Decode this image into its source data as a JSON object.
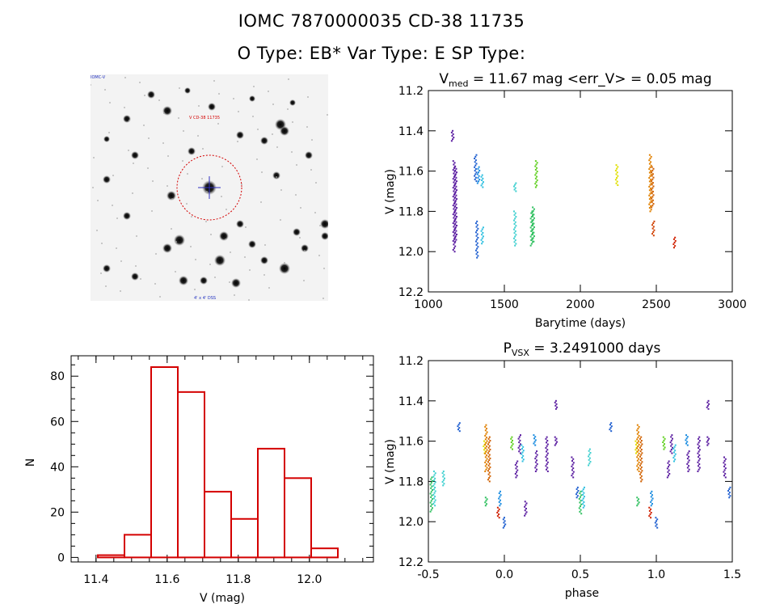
{
  "header": {
    "line1": "IOMC 7870000035    CD-38 11735",
    "line2": "O Type: EB*  Var Type: E  SP Type:"
  },
  "stamp": {
    "caption_top_left": "IOMC-V",
    "caption_target": "V CD-38 11735",
    "caption_bottom": "4' x 4' DSS",
    "marker_color": "#d40000"
  },
  "chart_data": [
    {
      "id": "lightcurve",
      "type": "scatter",
      "title": "V_med = 11.67 mag <err_V> = 0.05 mag",
      "title_parts": {
        "prefix": "V",
        "sub": "med",
        "rest": " = 11.67 mag <err_V> = 0.05 mag"
      },
      "xlabel": "Barytime (days)",
      "ylabel": "V (mag)",
      "xlim": [
        1000,
        3000
      ],
      "ylim": [
        12.2,
        11.2
      ],
      "xticks": [
        "1000",
        "1500",
        "2000",
        "2500",
        "3000"
      ],
      "yticks": [
        "11.2",
        "11.4",
        "11.6",
        "11.8",
        "12.0",
        "12.2"
      ],
      "segments": [
        {
          "x": 1160,
          "ymin": 11.4,
          "ymax": 11.45,
          "color": "#5a1ca0"
        },
        {
          "x": 1170,
          "ymin": 11.55,
          "ymax": 12.0,
          "color": "#5a1ca0"
        },
        {
          "x": 1180,
          "ymin": 11.58,
          "ymax": 11.95,
          "color": "#5a1ca0"
        },
        {
          "x": 1310,
          "ymin": 11.52,
          "ymax": 11.65,
          "color": "#1f5fd0"
        },
        {
          "x": 1320,
          "ymin": 11.85,
          "ymax": 12.03,
          "color": "#1f5fd0"
        },
        {
          "x": 1330,
          "ymin": 11.58,
          "ymax": 11.66,
          "color": "#1a8ce0"
        },
        {
          "x": 1355,
          "ymin": 11.62,
          "ymax": 11.68,
          "color": "#30c0e0"
        },
        {
          "x": 1355,
          "ymin": 11.88,
          "ymax": 11.96,
          "color": "#30c0e0"
        },
        {
          "x": 1570,
          "ymin": 11.66,
          "ymax": 11.7,
          "color": "#40d0d0"
        },
        {
          "x": 1570,
          "ymin": 11.8,
          "ymax": 11.97,
          "color": "#40d0d0"
        },
        {
          "x": 1680,
          "ymin": 11.8,
          "ymax": 11.97,
          "color": "#30c060"
        },
        {
          "x": 1690,
          "ymin": 11.78,
          "ymax": 11.95,
          "color": "#30c060"
        },
        {
          "x": 1710,
          "ymin": 11.55,
          "ymax": 11.68,
          "color": "#60d020"
        },
        {
          "x": 2240,
          "ymin": 11.57,
          "ymax": 11.67,
          "color": "#e0e000"
        },
        {
          "x": 2460,
          "ymin": 11.52,
          "ymax": 11.8,
          "color": "#e08000"
        },
        {
          "x": 2475,
          "ymin": 11.58,
          "ymax": 11.78,
          "color": "#d06000"
        },
        {
          "x": 2480,
          "ymin": 11.85,
          "ymax": 11.92,
          "color": "#d04000"
        },
        {
          "x": 2620,
          "ymin": 11.93,
          "ymax": 11.98,
          "color": "#d02000"
        }
      ]
    },
    {
      "id": "histogram",
      "type": "bar",
      "xlabel": "V (mag)",
      "ylabel": "N",
      "xlim": [
        11.33,
        12.18
      ],
      "ylim": [
        -2,
        89
      ],
      "xticks": [
        "11.4",
        "11.6",
        "11.8",
        "12.0"
      ],
      "yticks": [
        "0",
        "20",
        "40",
        "60",
        "80"
      ],
      "bin_width": 0.075,
      "bins": [
        {
          "left": 11.405,
          "count": 1
        },
        {
          "left": 11.48,
          "count": 10
        },
        {
          "left": 11.555,
          "count": 84
        },
        {
          "left": 11.63,
          "count": 73
        },
        {
          "left": 11.705,
          "count": 29
        },
        {
          "left": 11.78,
          "count": 17
        },
        {
          "left": 11.855,
          "count": 48
        },
        {
          "left": 11.93,
          "count": 35
        },
        {
          "left": 12.005,
          "count": 4
        }
      ],
      "bar_color": "#d40000"
    },
    {
      "id": "phased",
      "type": "scatter",
      "title": "P_VSX = 3.2491000 days",
      "title_parts": {
        "prefix": "P",
        "sub": "VSX",
        "rest": " = 3.2491000 days"
      },
      "xlabel": "phase",
      "ylabel": "V (mag)",
      "xlim": [
        -0.5,
        1.5
      ],
      "ylim": [
        12.2,
        11.2
      ],
      "xticks": [
        "-0.5",
        "0.0",
        "0.5",
        "1.0",
        "1.5"
      ],
      "yticks": [
        "11.2",
        "11.4",
        "11.6",
        "11.8",
        "12.0",
        "12.2"
      ],
      "segments": [
        {
          "x": -0.48,
          "ymin": 11.78,
          "ymax": 11.95,
          "color": "#30c060"
        },
        {
          "x": -0.46,
          "ymin": 11.75,
          "ymax": 11.92,
          "color": "#40d0d0"
        },
        {
          "x": -0.4,
          "ymin": 11.75,
          "ymax": 11.82,
          "color": "#40d0d0"
        },
        {
          "x": -0.3,
          "ymin": 11.51,
          "ymax": 11.55,
          "color": "#1f5fd0"
        },
        {
          "x": -0.13,
          "ymin": 11.6,
          "ymax": 11.66,
          "color": "#e0e000"
        },
        {
          "x": -0.12,
          "ymin": 11.52,
          "ymax": 11.75,
          "color": "#e08000"
        },
        {
          "x": -0.1,
          "ymin": 11.58,
          "ymax": 11.8,
          "color": "#d06000"
        },
        {
          "x": -0.12,
          "ymin": 11.88,
          "ymax": 11.92,
          "color": "#30c060"
        },
        {
          "x": -0.04,
          "ymin": 11.93,
          "ymax": 11.98,
          "color": "#d02000"
        },
        {
          "x": -0.03,
          "ymin": 11.85,
          "ymax": 11.92,
          "color": "#1a8ce0"
        },
        {
          "x": 0.0,
          "ymin": 11.98,
          "ymax": 12.03,
          "color": "#1f5fd0"
        },
        {
          "x": 0.05,
          "ymin": 11.58,
          "ymax": 11.64,
          "color": "#60d020"
        },
        {
          "x": 0.08,
          "ymin": 11.7,
          "ymax": 11.78,
          "color": "#5a1ca0"
        },
        {
          "x": 0.1,
          "ymin": 11.57,
          "ymax": 11.66,
          "color": "#5a1ca0"
        },
        {
          "x": 0.12,
          "ymin": 11.62,
          "ymax": 11.7,
          "color": "#30c0e0"
        },
        {
          "x": 0.14,
          "ymin": 11.9,
          "ymax": 11.97,
          "color": "#5a1ca0"
        },
        {
          "x": 0.2,
          "ymin": 11.57,
          "ymax": 11.62,
          "color": "#1a8ce0"
        },
        {
          "x": 0.21,
          "ymin": 11.65,
          "ymax": 11.75,
          "color": "#5a1ca0"
        },
        {
          "x": 0.28,
          "ymin": 11.58,
          "ymax": 11.75,
          "color": "#5a1ca0"
        },
        {
          "x": 0.34,
          "ymin": 11.4,
          "ymax": 11.44,
          "color": "#5a1ca0"
        },
        {
          "x": 0.34,
          "ymin": 11.58,
          "ymax": 11.62,
          "color": "#5a1ca0"
        },
        {
          "x": 0.45,
          "ymin": 11.68,
          "ymax": 11.78,
          "color": "#5a1ca0"
        },
        {
          "x": 0.48,
          "ymin": 11.83,
          "ymax": 11.88,
          "color": "#1f5fd0"
        },
        {
          "x": 0.5,
          "ymin": 11.85,
          "ymax": 11.96,
          "color": "#30c060"
        },
        {
          "x": 0.52,
          "ymin": 11.83,
          "ymax": 11.93,
          "color": "#30c0e0"
        },
        {
          "x": 0.56,
          "ymin": 11.64,
          "ymax": 11.72,
          "color": "#40d0d0"
        },
        {
          "x": 0.7,
          "ymin": 11.51,
          "ymax": 11.55,
          "color": "#1f5fd0"
        },
        {
          "x": 0.87,
          "ymin": 11.6,
          "ymax": 11.66,
          "color": "#e0e000"
        },
        {
          "x": 0.88,
          "ymin": 11.52,
          "ymax": 11.75,
          "color": "#e08000"
        },
        {
          "x": 0.9,
          "ymin": 11.58,
          "ymax": 11.8,
          "color": "#d06000"
        },
        {
          "x": 0.88,
          "ymin": 11.88,
          "ymax": 11.92,
          "color": "#30c060"
        },
        {
          "x": 0.96,
          "ymin": 11.93,
          "ymax": 11.98,
          "color": "#d02000"
        },
        {
          "x": 0.97,
          "ymin": 11.85,
          "ymax": 11.92,
          "color": "#1a8ce0"
        },
        {
          "x": 1.0,
          "ymin": 11.98,
          "ymax": 12.03,
          "color": "#1f5fd0"
        },
        {
          "x": 1.05,
          "ymin": 11.58,
          "ymax": 11.64,
          "color": "#60d020"
        },
        {
          "x": 1.08,
          "ymin": 11.7,
          "ymax": 11.78,
          "color": "#5a1ca0"
        },
        {
          "x": 1.1,
          "ymin": 11.57,
          "ymax": 11.66,
          "color": "#5a1ca0"
        },
        {
          "x": 1.12,
          "ymin": 11.62,
          "ymax": 11.7,
          "color": "#30c0e0"
        },
        {
          "x": 1.2,
          "ymin": 11.57,
          "ymax": 11.62,
          "color": "#1a8ce0"
        },
        {
          "x": 1.21,
          "ymin": 11.65,
          "ymax": 11.75,
          "color": "#5a1ca0"
        },
        {
          "x": 1.28,
          "ymin": 11.58,
          "ymax": 11.75,
          "color": "#5a1ca0"
        },
        {
          "x": 1.34,
          "ymin": 11.4,
          "ymax": 11.44,
          "color": "#5a1ca0"
        },
        {
          "x": 1.34,
          "ymin": 11.58,
          "ymax": 11.62,
          "color": "#5a1ca0"
        },
        {
          "x": 1.45,
          "ymin": 11.68,
          "ymax": 11.78,
          "color": "#5a1ca0"
        },
        {
          "x": 1.48,
          "ymin": 11.83,
          "ymax": 11.88,
          "color": "#1f5fd0"
        }
      ]
    }
  ]
}
